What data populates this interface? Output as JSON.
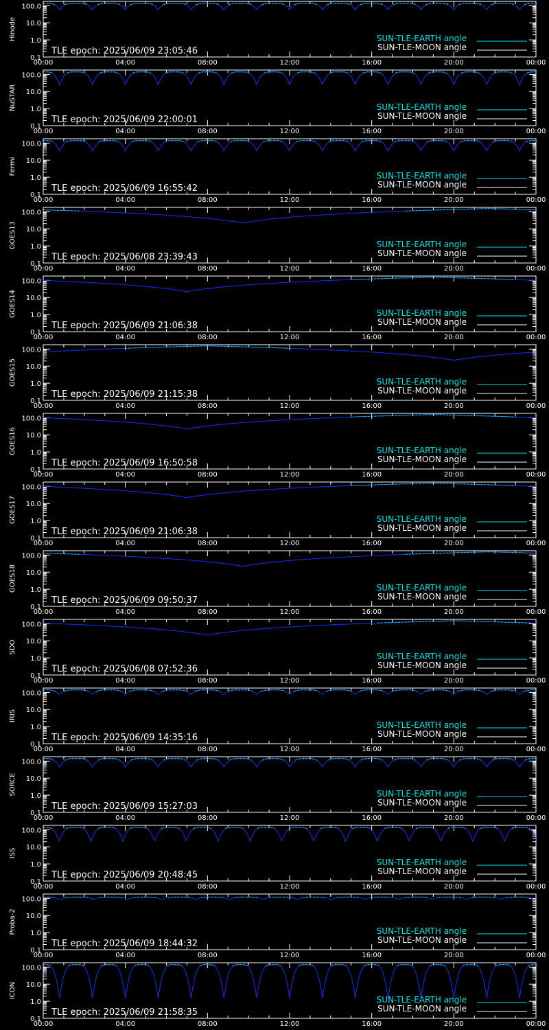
{
  "colors": {
    "background": "#000000",
    "axis": "#ffffff",
    "earth_series": "#00e5e5",
    "moon_series": "#ffffff",
    "curve": "#1030ff"
  },
  "legend": {
    "earth": "SUN-TLE-EARTH angle",
    "moon": "SUN-TLE-MOON angle"
  },
  "axes": {
    "x_ticks": [
      "00:00",
      "04:00",
      "08:00",
      "12:00",
      "16:00",
      "20:00",
      "00:00"
    ],
    "y_ticks": [
      "100.0",
      "10.0",
      "1.0",
      "0.1"
    ],
    "y_scale": "log",
    "ylim": [
      0.1,
      180
    ],
    "xlim_hours": [
      0,
      24
    ]
  },
  "chart_data": [
    {
      "type": "line",
      "ylabel": "Hinode",
      "epoch": "TLE epoch: 2025/06/09 23:05:46",
      "curve_kind": "periodic",
      "period_hours": 1.6,
      "y_max": 140,
      "y_min": 60
    },
    {
      "type": "line",
      "ylabel": "NuSTAR",
      "epoch": "TLE epoch: 2025/06/09 22:00:01",
      "curve_kind": "periodic",
      "period_hours": 1.6,
      "y_max": 140,
      "y_min": 25
    },
    {
      "type": "line",
      "ylabel": "Fermi",
      "epoch": "TLE epoch: 2025/06/09 16:55:42",
      "curve_kind": "periodic",
      "period_hours": 1.6,
      "y_max": 140,
      "y_min": 35
    },
    {
      "type": "line",
      "ylabel": "GOES13",
      "epoch": "TLE epoch: 2025/06/08 23:39:43",
      "curve_kind": "daily",
      "min_time_hours": 9.7,
      "y_max": 155,
      "y_min": 22
    },
    {
      "type": "line",
      "ylabel": "GOES14",
      "epoch": "TLE epoch: 2025/06/09 21:06:38",
      "curve_kind": "daily",
      "min_time_hours": 7.0,
      "y_max": 155,
      "y_min": 22
    },
    {
      "type": "line",
      "ylabel": "GOES15",
      "epoch": "TLE epoch: 2025/06/09 21:15:38",
      "curve_kind": "daily",
      "min_time_hours": 20.0,
      "y_max": 155,
      "y_min": 22
    },
    {
      "type": "line",
      "ylabel": "GOES16",
      "epoch": "TLE epoch: 2025/06/09 16:50:58",
      "curve_kind": "daily",
      "min_time_hours": 7.0,
      "y_max": 155,
      "y_min": 22
    },
    {
      "type": "line",
      "ylabel": "GOES17",
      "epoch": "TLE epoch: 2025/06/09 21:06:38",
      "curve_kind": "daily",
      "min_time_hours": 7.0,
      "y_max": 155,
      "y_min": 22
    },
    {
      "type": "line",
      "ylabel": "GOES18",
      "epoch": "TLE epoch: 2025/06/09 09:50:37",
      "curve_kind": "daily",
      "min_time_hours": 9.7,
      "y_max": 155,
      "y_min": 22
    },
    {
      "type": "line",
      "ylabel": "SDO",
      "epoch": "TLE epoch: 2025/06/08 07:52:36",
      "curve_kind": "daily",
      "min_time_hours": 8.0,
      "y_max": 150,
      "y_min": 22
    },
    {
      "type": "line",
      "ylabel": "IRIS",
      "epoch": "TLE epoch: 2025/06/09 14:35:16",
      "curve_kind": "periodic",
      "period_hours": 1.6,
      "y_max": 140,
      "y_min": 75
    },
    {
      "type": "line",
      "ylabel": "SORCE",
      "epoch": "TLE epoch: 2025/06/09 15:27:03",
      "curve_kind": "periodic",
      "period_hours": 1.6,
      "y_max": 140,
      "y_min": 45
    },
    {
      "type": "line",
      "ylabel": "ISS",
      "epoch": "TLE epoch: 2025/06/09 20:48:45",
      "curve_kind": "periodic",
      "period_hours": 1.55,
      "y_max": 140,
      "y_min": 20
    },
    {
      "type": "line",
      "ylabel": "Proba-2",
      "epoch": "TLE epoch: 2025/06/09 18:44:32",
      "curve_kind": "periodic",
      "period_hours": 1.65,
      "y_max": 120,
      "y_min": 85
    },
    {
      "type": "line",
      "ylabel": "ICON",
      "epoch": "TLE epoch: 2025/06/09 21:58:35",
      "curve_kind": "periodic",
      "period_hours": 1.6,
      "y_max": 140,
      "y_min": 1.5
    }
  ]
}
